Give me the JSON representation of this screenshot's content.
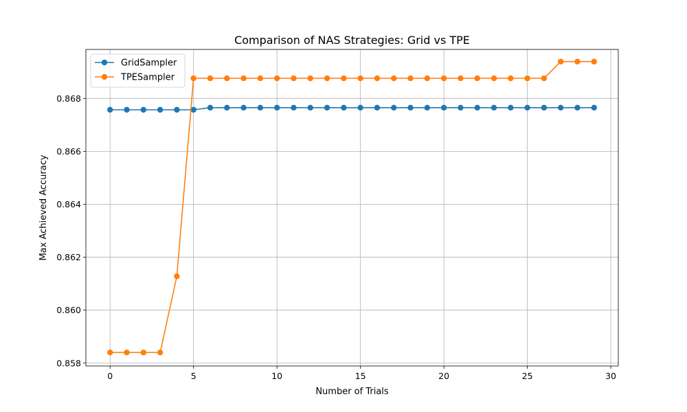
{
  "chart_data": {
    "type": "line",
    "title": "Comparison of NAS Strategies: Grid vs TPE",
    "xlabel": "Number of Trials",
    "ylabel": "Max Achieved Accuracy",
    "xlim": [
      -1.45,
      30.45
    ],
    "ylim": [
      0.85789,
      0.86985
    ],
    "xticks": [
      0,
      5,
      10,
      15,
      20,
      25,
      30
    ],
    "xtick_labels": [
      "0",
      "5",
      "10",
      "15",
      "20",
      "25",
      "30"
    ],
    "yticks": [
      0.858,
      0.86,
      0.862,
      0.864,
      0.866,
      0.868
    ],
    "ytick_labels": [
      "0.858",
      "0.860",
      "0.862",
      "0.864",
      "0.866",
      "0.868"
    ],
    "grid": true,
    "legend_position": "top-left",
    "x": [
      0,
      1,
      2,
      3,
      4,
      5,
      6,
      7,
      8,
      9,
      10,
      11,
      12,
      13,
      14,
      15,
      16,
      17,
      18,
      19,
      20,
      21,
      22,
      23,
      24,
      25,
      26,
      27,
      28,
      29
    ],
    "series": [
      {
        "name": "GridSampler",
        "color": "#1f77b4",
        "values": [
          0.86757,
          0.86757,
          0.86757,
          0.86757,
          0.86757,
          0.86757,
          0.86765,
          0.86765,
          0.86765,
          0.86765,
          0.86765,
          0.86765,
          0.86765,
          0.86765,
          0.86765,
          0.86765,
          0.86765,
          0.86765,
          0.86765,
          0.86765,
          0.86765,
          0.86765,
          0.86765,
          0.86765,
          0.86765,
          0.86765,
          0.86765,
          0.86765,
          0.86765,
          0.86765
        ]
      },
      {
        "name": "TPESampler",
        "color": "#ff7f0e",
        "values": [
          0.8584,
          0.8584,
          0.8584,
          0.8584,
          0.86128,
          0.86876,
          0.86876,
          0.86876,
          0.86876,
          0.86876,
          0.86876,
          0.86876,
          0.86876,
          0.86876,
          0.86876,
          0.86876,
          0.86876,
          0.86876,
          0.86876,
          0.86876,
          0.86876,
          0.86876,
          0.86876,
          0.86876,
          0.86876,
          0.86876,
          0.86876,
          0.86939,
          0.86939,
          0.86939
        ]
      }
    ]
  }
}
